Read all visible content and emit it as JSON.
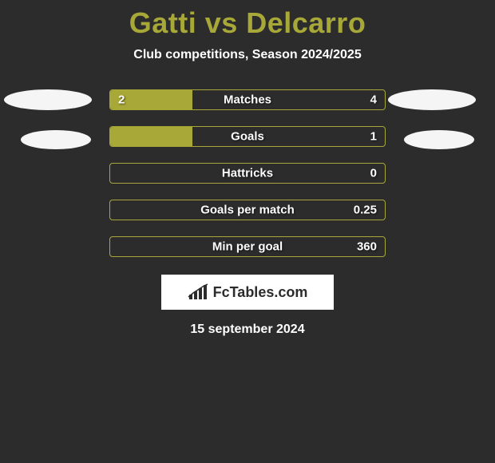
{
  "title": "Gatti vs Delcarro",
  "title_color": "#a8a838",
  "subtitle": "Club competitions, Season 2024/2025",
  "date": "15 september 2024",
  "background_color": "#2c2c2c",
  "bar_fill_color": "#a8a838",
  "bar_border_color": "#a8a838",
  "ellipse_color": "#f5f5f5",
  "logo_text": "FcTables.com",
  "rows": [
    {
      "label": "Matches",
      "left": "2",
      "right": "4",
      "fill_pct": 30
    },
    {
      "label": "Goals",
      "left": "",
      "right": "1",
      "fill_pct": 30
    },
    {
      "label": "Hattricks",
      "left": "",
      "right": "0",
      "fill_pct": 0
    },
    {
      "label": "Goals per match",
      "left": "",
      "right": "0.25",
      "fill_pct": 0
    },
    {
      "label": "Min per goal",
      "left": "",
      "right": "360",
      "fill_pct": 0
    }
  ]
}
